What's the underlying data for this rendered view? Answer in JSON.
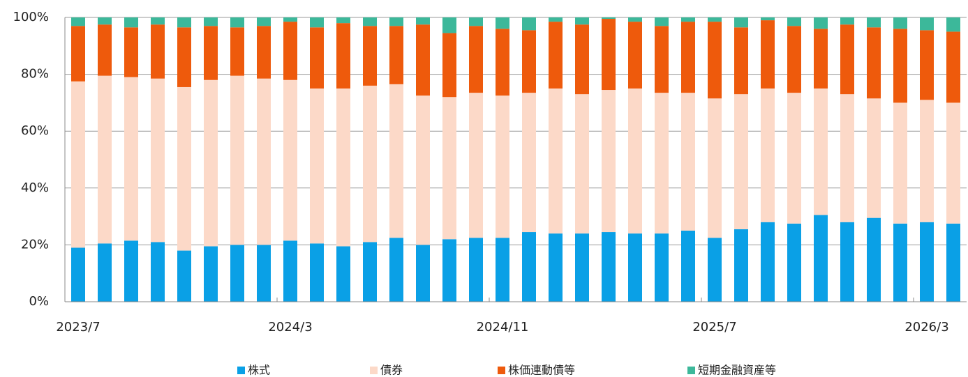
{
  "chart_data": {
    "type": "stacked_bar",
    "categories": [
      "2023/7",
      null,
      null,
      null,
      null,
      null,
      null,
      null,
      "2024/3",
      null,
      null,
      null,
      null,
      null,
      null,
      null,
      "2024/11",
      null,
      null,
      null,
      null,
      null,
      null,
      null,
      "2025/7",
      null,
      null,
      null,
      null,
      null,
      null,
      null,
      "2026/3",
      null
    ],
    "series": [
      {
        "name": "株式",
        "color": "#0aa0e6",
        "values": [
          19,
          20.5,
          21.5,
          21,
          18,
          19.5,
          20,
          20,
          21.5,
          20.5,
          19.5,
          21,
          22.5,
          20,
          22,
          22.5,
          22.5,
          24.5,
          24,
          24,
          24.5,
          24,
          24,
          25,
          22.5,
          25.5,
          28,
          27.5,
          30.5,
          28,
          29.5,
          27.5,
          28,
          27.5
        ]
      },
      {
        "name": "債券",
        "color": "#fcd9c8",
        "values": [
          58.5,
          59,
          57.5,
          57.5,
          57.5,
          58.5,
          59.5,
          58.5,
          56.5,
          54.5,
          55.5,
          55,
          54,
          52.5,
          50,
          51,
          50,
          49,
          51,
          49,
          50,
          51,
          49.5,
          48.5,
          49,
          47.5,
          47,
          46,
          44.5,
          45,
          42,
          42.5,
          43,
          42.5
        ]
      },
      {
        "name": "株価連動債等",
        "color": "#ee5a0c",
        "values": [
          19.5,
          18,
          17.5,
          19,
          21,
          19,
          17,
          18.5,
          20.5,
          21.5,
          23,
          21,
          20.5,
          25,
          22.5,
          23.5,
          23.5,
          22,
          23.5,
          24.5,
          25,
          23.5,
          23.5,
          25,
          27,
          23.5,
          24,
          23.5,
          21,
          24.5,
          25,
          26,
          24.5,
          25
        ]
      },
      {
        "name": "短期金融資産等",
        "color": "#3cb89a",
        "values": [
          3,
          2.5,
          3.5,
          2.5,
          3.5,
          3,
          3.5,
          3,
          1.5,
          3.5,
          2,
          3,
          3,
          2.5,
          5.5,
          3,
          4,
          4.5,
          1.5,
          2.5,
          0.5,
          1.5,
          3,
          1.5,
          1.5,
          3.5,
          1,
          3,
          4,
          2.5,
          3.5,
          4,
          4.5,
          5
        ]
      }
    ],
    "ylim": [
      0,
      100
    ],
    "yticks": [
      {
        "value": 0,
        "label": "0%"
      },
      {
        "value": 20,
        "label": "20%"
      },
      {
        "value": 40,
        "label": "40%"
      },
      {
        "value": 60,
        "label": "60%"
      },
      {
        "value": 80,
        "label": "80%"
      },
      {
        "value": 100,
        "label": "100%"
      }
    ],
    "grid": true,
    "legend": "bottom"
  }
}
